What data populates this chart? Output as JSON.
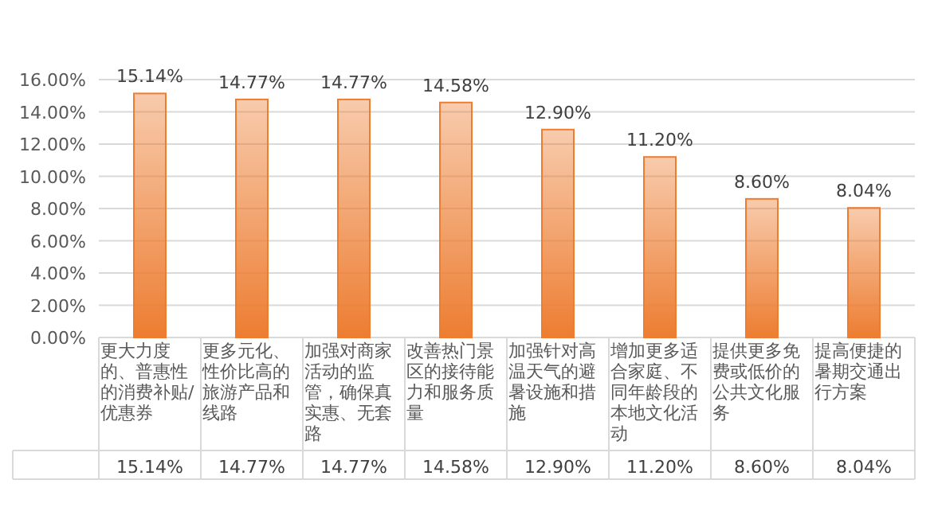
{
  "chart_data": {
    "type": "bar",
    "categories": [
      "更大力度的、普惠性的消费补贴/优惠券",
      "更多元化、性价比高的旅游产品和线路",
      "加强对商家活动的监管，确保真实惠、无套路",
      "改善热门景区的接待能力和服务质量",
      "加强针对高温天气的避暑设施和措施",
      "增加更多适合家庭、不同年龄段的本地文化活动",
      "提供更多免费或低价的公共文化服务",
      "提高便捷的暑期交通出行方案"
    ],
    "values": [
      15.14,
      14.77,
      14.77,
      14.58,
      12.9,
      11.2,
      8.6,
      8.04
    ],
    "value_labels": [
      "15.14%",
      "14.77%",
      "14.77%",
      "14.58%",
      "12.90%",
      "11.20%",
      "8.60%",
      "8.04%"
    ],
    "color": "#ed7d31",
    "ylim": [
      0,
      16
    ],
    "yticks": [
      {
        "value": 0,
        "label": "0.00%"
      },
      {
        "value": 2,
        "label": "2.00%"
      },
      {
        "value": 4,
        "label": "4.00%"
      },
      {
        "value": 6,
        "label": "6.00%"
      },
      {
        "value": 8,
        "label": "8.00%"
      },
      {
        "value": 10,
        "label": "10.00%"
      },
      {
        "value": 12,
        "label": "12.00%"
      },
      {
        "value": 14,
        "label": "14.00%"
      },
      {
        "value": 16,
        "label": "16.00%"
      }
    ],
    "grid": "y"
  }
}
